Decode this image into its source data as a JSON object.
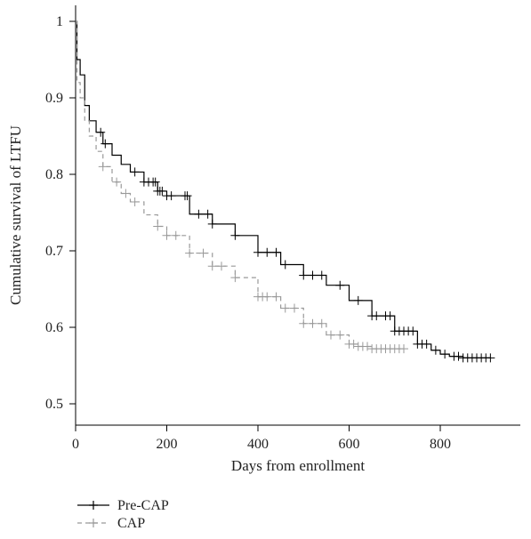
{
  "chart_data": {
    "type": "line",
    "title": "",
    "xlabel": "Days from enrollment",
    "ylabel": "Cumulative survival of LTFU",
    "xlim": [
      0,
      950
    ],
    "ylim": [
      0.48,
      1.02
    ],
    "x_ticks": [
      0,
      200,
      400,
      600,
      800
    ],
    "y_ticks": [
      0.5,
      0.6,
      0.7,
      0.8,
      0.9,
      1
    ],
    "grid": false,
    "legend_position": "bottom-left",
    "series": [
      {
        "name": "Pre-CAP",
        "color": "#000000",
        "style": "solid",
        "marker": "+",
        "x": [
          0,
          3,
          10,
          20,
          30,
          45,
          60,
          80,
          100,
          120,
          150,
          180,
          200,
          250,
          300,
          350,
          400,
          450,
          500,
          550,
          600,
          650,
          700,
          750,
          780,
          800,
          820,
          850,
          880,
          910
        ],
        "y": [
          1.0,
          0.95,
          0.93,
          0.89,
          0.87,
          0.855,
          0.84,
          0.825,
          0.813,
          0.803,
          0.79,
          0.778,
          0.772,
          0.748,
          0.735,
          0.72,
          0.698,
          0.682,
          0.668,
          0.655,
          0.635,
          0.615,
          0.595,
          0.578,
          0.57,
          0.565,
          0.562,
          0.56,
          0.56,
          0.56
        ],
        "censor_x": [
          55,
          65,
          130,
          150,
          160,
          170,
          175,
          180,
          185,
          190,
          200,
          210,
          240,
          245,
          270,
          290,
          300,
          350,
          400,
          420,
          440,
          460,
          500,
          520,
          540,
          580,
          620,
          650,
          660,
          680,
          690,
          700,
          710,
          720,
          730,
          740,
          750,
          760,
          770,
          790,
          810,
          830,
          840,
          850,
          860,
          870,
          880,
          890,
          900,
          910
        ]
      },
      {
        "name": "CAP",
        "color": "#999999",
        "style": "dashed",
        "marker": "+",
        "x": [
          0,
          3,
          10,
          20,
          30,
          45,
          60,
          80,
          100,
          120,
          150,
          180,
          200,
          250,
          300,
          350,
          400,
          450,
          500,
          550,
          600,
          620,
          650,
          700,
          720
        ],
        "y": [
          1.0,
          0.92,
          0.9,
          0.87,
          0.85,
          0.83,
          0.81,
          0.79,
          0.775,
          0.764,
          0.747,
          0.732,
          0.72,
          0.697,
          0.68,
          0.665,
          0.64,
          0.625,
          0.605,
          0.59,
          0.578,
          0.575,
          0.572,
          0.572,
          0.572
        ],
        "censor_x": [
          60,
          90,
          110,
          130,
          180,
          200,
          220,
          250,
          280,
          300,
          320,
          350,
          400,
          410,
          420,
          440,
          460,
          480,
          500,
          520,
          540,
          560,
          580,
          600,
          610,
          620,
          630,
          640,
          650,
          660,
          670,
          680,
          690,
          700,
          710,
          720
        ]
      }
    ]
  }
}
